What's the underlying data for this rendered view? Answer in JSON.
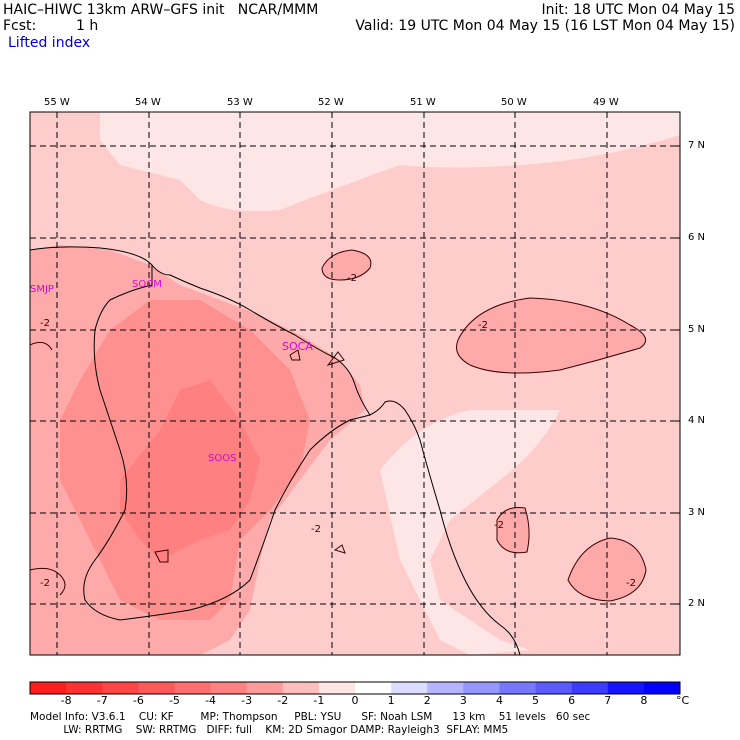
{
  "header": {
    "title_left": "HAIC–HIWC 13km ARW–GFS init   NCAR/MMM",
    "fcst_label": "Fcst:",
    "fcst_value": "1 h",
    "field_name": "Lifted index",
    "init_text": "Init: 18 UTC Mon 04 May 15",
    "valid_text": "Valid: 19 UTC Mon 04 May 15 (16 LST Mon 04 May 15)"
  },
  "map": {
    "lon_labels": [
      "55 W",
      "54 W",
      "53 W",
      "52 W",
      "51 W",
      "50 W",
      "49 W"
    ],
    "lat_labels": [
      "7 N",
      "6 N",
      "5 N",
      "4 N",
      "3 N",
      "2 N"
    ],
    "stations": [
      "SMJP",
      "SOCM",
      "SOCA",
      "SOOS"
    ],
    "contour_labels": [
      "-2",
      "-2",
      "-2",
      "-2",
      "-2",
      "-2",
      "-2"
    ],
    "field_values": {
      "background_lifted_index": -1,
      "inland_core_lifted_index": -3
    }
  },
  "colorbar": {
    "ticks": [
      "-8",
      "-7",
      "-6",
      "-5",
      "-4",
      "-3",
      "-2",
      "-1",
      "0",
      "1",
      "2",
      "3",
      "4",
      "5",
      "6",
      "7",
      "8"
    ],
    "unit": "°C",
    "colors": [
      "#ff1e1e",
      "#ff3232",
      "#ff4646",
      "#ff5a5a",
      "#ff6e6e",
      "#ff8282",
      "#ff9b9b",
      "#ffbebe",
      "#ffe6e6",
      "#ffffff",
      "#dcdcff",
      "#b4b4ff",
      "#9696ff",
      "#7878ff",
      "#5a5aff",
      "#3c3cff",
      "#1414ff",
      "#0000ff"
    ]
  },
  "footer": {
    "line1": "Model Info: V3.6.1    CU: KF        MP: Thompson     PBL: YSU      SF: Noah LSM      13 km    51 levels   60 sec",
    "line2": "          LW: RRTMG    SW: RRTMG   DIFF: full    KM: 2D Smagor DAMP: Rayleigh3  SFLAY: MM5"
  }
}
